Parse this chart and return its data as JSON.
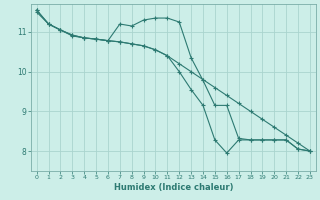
{
  "xlabel": "Humidex (Indice chaleur)",
  "ylabel": "",
  "bg_color": "#cceee8",
  "grid_color": "#aad4ce",
  "line_color": "#2d7a72",
  "xlim": [
    -0.5,
    23.5
  ],
  "ylim": [
    7.5,
    11.7
  ],
  "xticks": [
    0,
    1,
    2,
    3,
    4,
    5,
    6,
    7,
    8,
    9,
    10,
    11,
    12,
    13,
    14,
    15,
    16,
    17,
    18,
    19,
    20,
    21,
    22,
    23
  ],
  "yticks": [
    8,
    9,
    10,
    11
  ],
  "line1_x": [
    0,
    1,
    2,
    3,
    4,
    5,
    6,
    7,
    8,
    9,
    10,
    11,
    12,
    13,
    14,
    15,
    16,
    17,
    18,
    19,
    20,
    21,
    22,
    23
  ],
  "line1_y": [
    11.5,
    11.2,
    11.05,
    10.9,
    10.85,
    10.82,
    10.78,
    10.75,
    10.7,
    10.65,
    10.55,
    10.4,
    10.2,
    10.0,
    9.8,
    9.6,
    9.4,
    9.2,
    9.0,
    8.8,
    8.6,
    8.4,
    8.2,
    8.0
  ],
  "line2_x": [
    0,
    1,
    2,
    3,
    4,
    5,
    6,
    7,
    8,
    9,
    10,
    11,
    12,
    13,
    14,
    15,
    16,
    17,
    18,
    19,
    20,
    21,
    22,
    23
  ],
  "line2_y": [
    11.55,
    11.2,
    11.05,
    10.92,
    10.85,
    10.82,
    10.78,
    11.2,
    11.15,
    11.3,
    11.35,
    11.35,
    11.25,
    10.35,
    9.78,
    9.15,
    9.15,
    8.32,
    8.28,
    8.28,
    8.28,
    8.28,
    8.05,
    8.0
  ],
  "line3_x": [
    0,
    1,
    2,
    3,
    4,
    5,
    6,
    7,
    8,
    9,
    10,
    11,
    12,
    13,
    14,
    15,
    16,
    17,
    18,
    19,
    20,
    21,
    22,
    23
  ],
  "line3_y": [
    11.55,
    11.2,
    11.05,
    10.92,
    10.85,
    10.82,
    10.78,
    10.75,
    10.7,
    10.65,
    10.55,
    10.4,
    10.0,
    9.55,
    9.15,
    8.28,
    7.95,
    8.28,
    8.28,
    8.28,
    8.28,
    8.28,
    8.05,
    8.0
  ]
}
